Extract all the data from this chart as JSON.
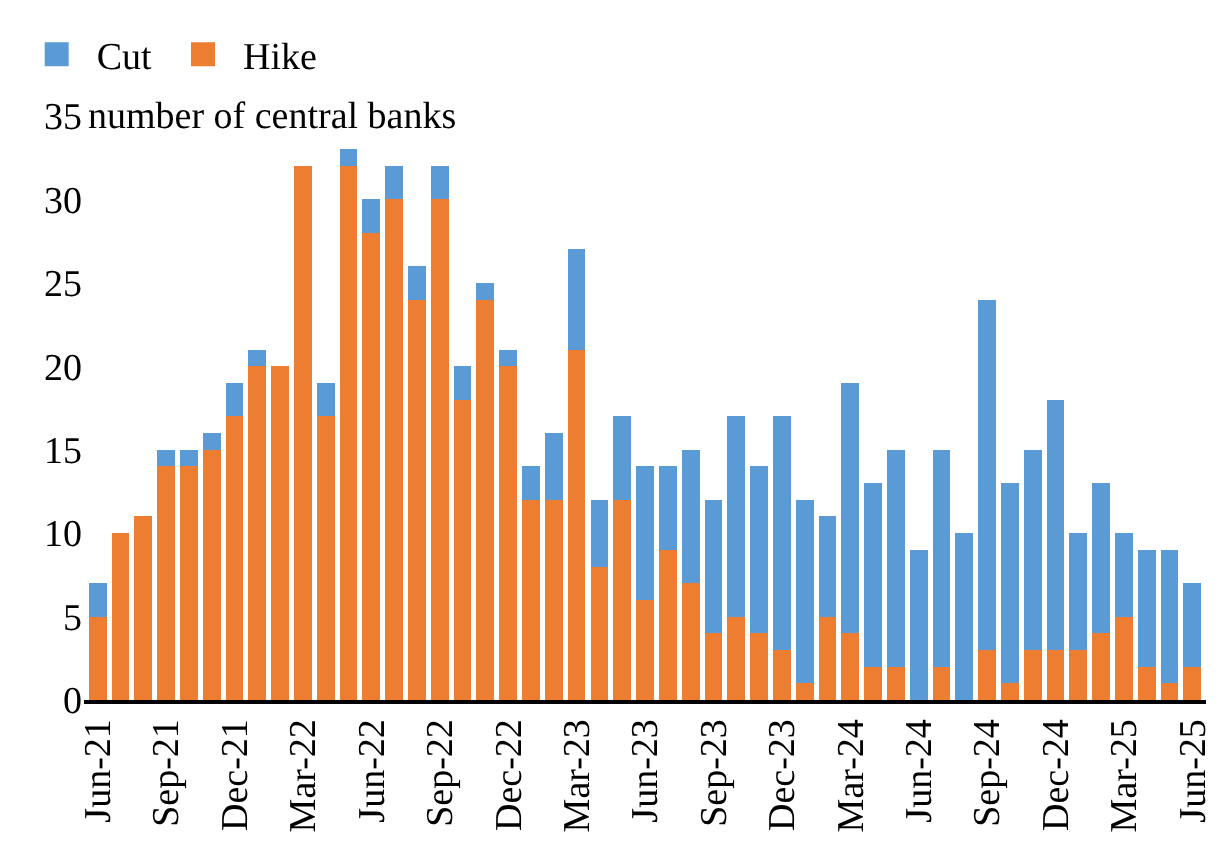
{
  "chart_data": {
    "type": "bar",
    "stacked": true,
    "ylabel": "number of central banks",
    "categories": [
      "Jun-21",
      null,
      null,
      "Sep-21",
      null,
      null,
      "Dec-21",
      null,
      null,
      "Mar-22",
      null,
      null,
      "Jun-22",
      null,
      null,
      "Sep-22",
      null,
      null,
      "Dec-22",
      null,
      null,
      "Mar-23",
      null,
      null,
      "Jun-23",
      null,
      null,
      "Sep-23",
      null,
      null,
      "Dec-23",
      null,
      null,
      "Mar-24",
      null,
      null,
      "Jun-24",
      null,
      null,
      "Sep-24",
      null,
      null,
      "Dec-24",
      null,
      null,
      "Mar-25",
      null,
      null,
      "Jun-25"
    ],
    "series": [
      {
        "name": "Hike",
        "color": "#ed7d31",
        "values": [
          5,
          10,
          11,
          14,
          14,
          15,
          17,
          20,
          20,
          32,
          17,
          32,
          28,
          30,
          24,
          30,
          18,
          24,
          20,
          12,
          12,
          21,
          8,
          12,
          6,
          9,
          7,
          4,
          5,
          4,
          3,
          1,
          5,
          4,
          2,
          2,
          0,
          2,
          0,
          3,
          1,
          3,
          3,
          3,
          4,
          5,
          2,
          1,
          2
        ]
      },
      {
        "name": "Cut",
        "color": "#5b9bd5",
        "values": [
          2,
          0,
          0,
          1,
          1,
          1,
          2,
          1,
          0,
          0,
          2,
          1,
          2,
          2,
          2,
          2,
          2,
          1,
          1,
          2,
          4,
          6,
          4,
          5,
          8,
          5,
          8,
          8,
          12,
          10,
          14,
          11,
          6,
          15,
          11,
          13,
          9,
          13,
          10,
          21,
          12,
          12,
          15,
          7,
          9,
          5,
          7,
          8,
          5
        ]
      }
    ],
    "ylim": [
      0,
      35
    ],
    "yticks": [
      0,
      5,
      10,
      15,
      20,
      25,
      30,
      35
    ],
    "grid": false,
    "legend": "top left"
  }
}
